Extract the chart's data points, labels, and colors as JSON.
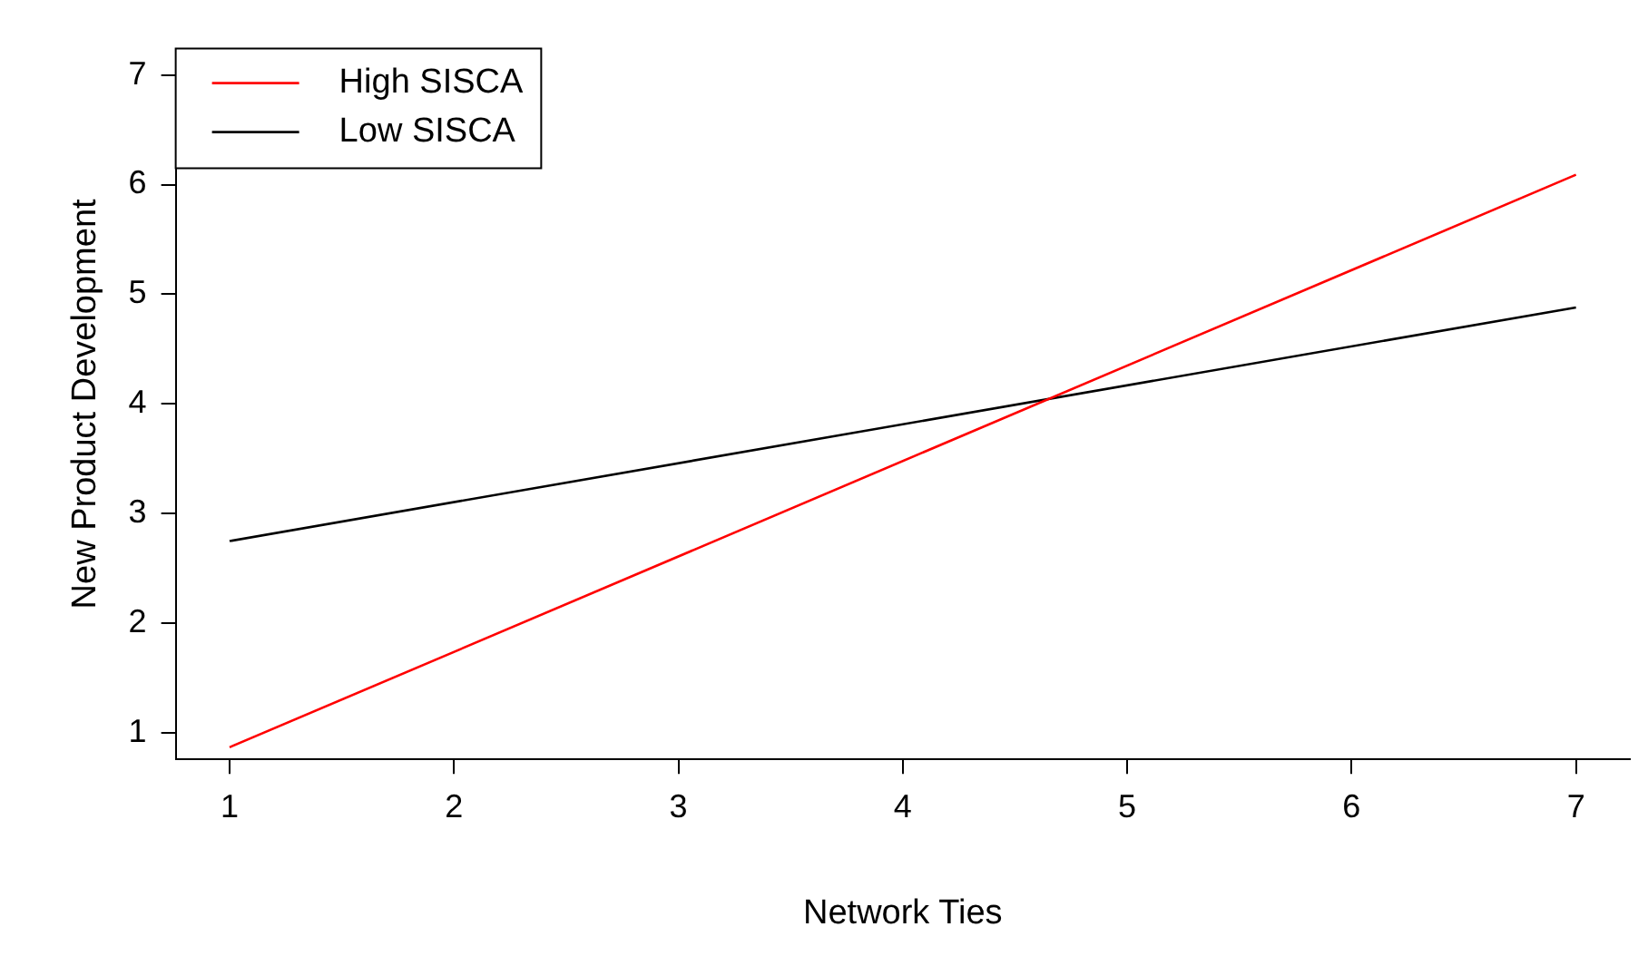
{
  "chart_data": {
    "type": "line",
    "xlabel": "Network Ties",
    "ylabel": "New Product Development",
    "x": [
      1,
      7
    ],
    "series": [
      {
        "name": "High SISCA",
        "color": "#ff0000",
        "values": [
          0.87,
          6.09
        ]
      },
      {
        "name": "Low SISCA",
        "color": "#000000",
        "values": [
          2.75,
          4.88
        ]
      }
    ],
    "xlim": [
      0.76,
      7.24
    ],
    "xticks": [
      1,
      2,
      3,
      4,
      5,
      6,
      7
    ],
    "ylim": [
      0.76,
      7.24
    ],
    "yticks": [
      1,
      2,
      3,
      4,
      5,
      6,
      7
    ],
    "grid": false,
    "legend": "top left",
    "marker": "none",
    "line_style": "solid"
  }
}
